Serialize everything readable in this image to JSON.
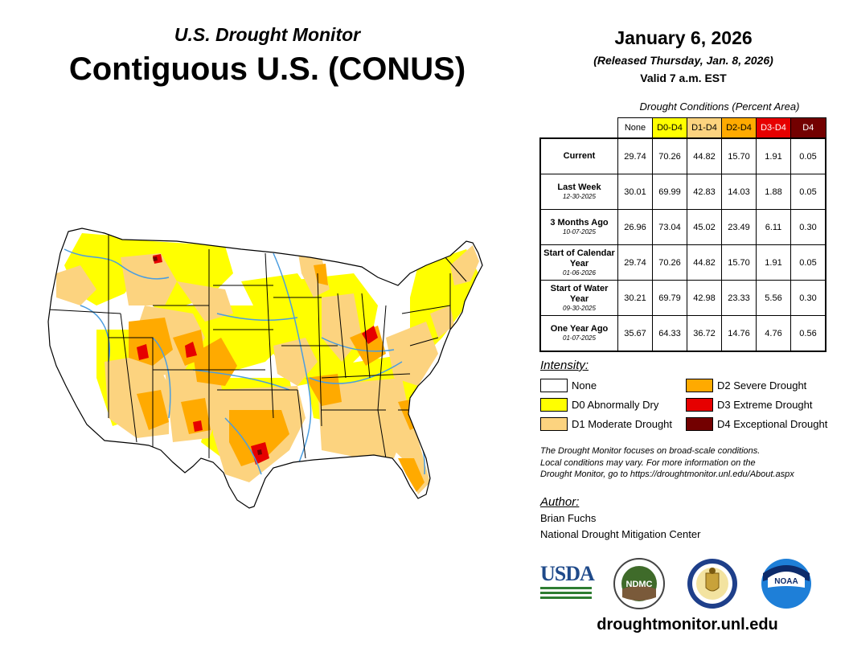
{
  "header": {
    "subtitle": "U.S. Drought Monitor",
    "title": "Contiguous U.S. (CONUS)",
    "date": "January 6, 2026",
    "released": "(Released Thursday, Jan. 8, 2026)",
    "valid": "Valid 7 a.m. EST"
  },
  "table": {
    "title": "Drought Conditions (Percent Area)",
    "columns": [
      {
        "label": "None",
        "color": "#ffffff",
        "text_color": "#000000"
      },
      {
        "label": "D0-D4",
        "color": "#ffff00",
        "text_color": "#000000"
      },
      {
        "label": "D1-D4",
        "color": "#fcd37f",
        "text_color": "#000000"
      },
      {
        "label": "D2-D4",
        "color": "#ffaa00",
        "text_color": "#000000"
      },
      {
        "label": "D3-D4",
        "color": "#e60000",
        "text_color": "#ffffff"
      },
      {
        "label": "D4",
        "color": "#730000",
        "text_color": "#ffffff"
      }
    ],
    "rows": [
      {
        "label": "Current",
        "date": "",
        "values": [
          "29.74",
          "70.26",
          "44.82",
          "15.70",
          "1.91",
          "0.05"
        ]
      },
      {
        "label": "Last Week",
        "date": "12-30-2025",
        "values": [
          "30.01",
          "69.99",
          "42.83",
          "14.03",
          "1.88",
          "0.05"
        ]
      },
      {
        "label": "3 Months Ago",
        "date": "10-07-2025",
        "values": [
          "26.96",
          "73.04",
          "45.02",
          "23.49",
          "6.11",
          "0.30"
        ]
      },
      {
        "label": "Start of Calendar Year",
        "date": "01-06-2026",
        "values": [
          "29.74",
          "70.26",
          "44.82",
          "15.70",
          "1.91",
          "0.05"
        ]
      },
      {
        "label": "Start of Water Year",
        "date": "09-30-2025",
        "values": [
          "30.21",
          "69.79",
          "42.98",
          "23.33",
          "5.56",
          "0.30"
        ]
      },
      {
        "label": "One Year Ago",
        "date": "01-07-2025",
        "values": [
          "35.67",
          "64.33",
          "36.72",
          "14.76",
          "4.76",
          "0.56"
        ]
      }
    ]
  },
  "legend": {
    "title": "Intensity:",
    "items": [
      {
        "label": "None",
        "color": "#ffffff"
      },
      {
        "label": "D0 Abnormally Dry",
        "color": "#ffff00"
      },
      {
        "label": "D1 Moderate Drought",
        "color": "#fcd37f"
      },
      {
        "label": "D2 Severe Drought",
        "color": "#ffaa00"
      },
      {
        "label": "D3 Extreme Drought",
        "color": "#e60000"
      },
      {
        "label": "D4 Exceptional Drought",
        "color": "#730000"
      }
    ]
  },
  "note": {
    "line1": "The Drought Monitor focuses on broad-scale conditions.",
    "line2": "Local conditions may vary. For more information on the",
    "line3": "Drought Monitor, go to https://droughtmonitor.unl.edu/About.aspx"
  },
  "author": {
    "heading": "Author:",
    "name": "Brian Fuchs",
    "org": "National Drought Mitigation Center"
  },
  "logos": {
    "usda": "USDA",
    "ndmc": "NDMC",
    "noaa": "NOAA"
  },
  "footer_url": "droughtmonitor.unl.edu"
}
